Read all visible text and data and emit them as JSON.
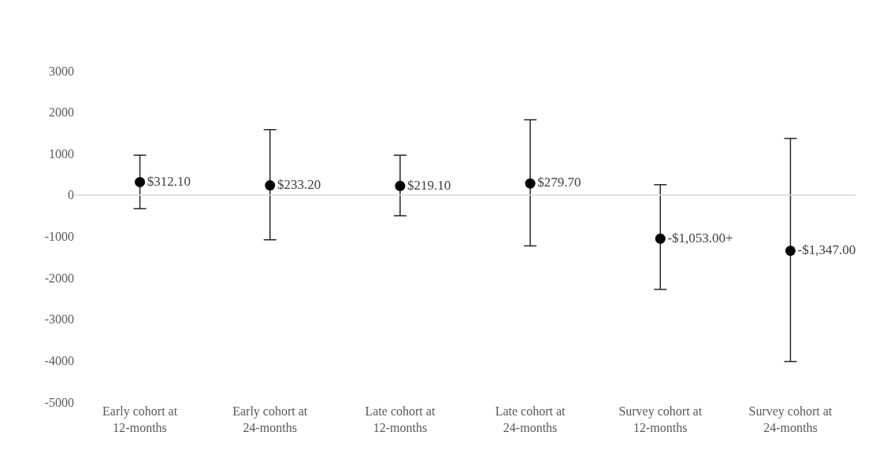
{
  "chart_data": {
    "type": "scatter",
    "categories": [
      "Early cohort at 12-months",
      "Early cohort at 24-months",
      "Late cohort at 12-months",
      "Late cohort at 24-months",
      "Survey cohort at 12-months",
      "Survey cohort at 24-months"
    ],
    "values": [
      312.1,
      233.2,
      219.1,
      279.7,
      -1053,
      -1347
    ],
    "errors": [
      [
        -330,
        960
      ],
      [
        -1080,
        1580
      ],
      [
        -500,
        960
      ],
      [
        -1230,
        1815
      ],
      [
        -2280,
        250
      ],
      [
        -4020,
        1365
      ]
    ],
    "value_labels": [
      "$312.10",
      "$233.20",
      "$219.10",
      "$279.70",
      "-$1,053.00+",
      "-$1,347.00"
    ],
    "color": "#000000",
    "marker": "circle",
    "ylim": [
      -5000,
      3000
    ],
    "yticks": [
      -5000,
      -4000,
      -3000,
      -2000,
      -1000,
      0,
      1000,
      2000,
      3000
    ],
    "ref_lines": [
      {
        "axis": "y",
        "value": 0,
        "color": "#d9d9d9"
      }
    ]
  }
}
